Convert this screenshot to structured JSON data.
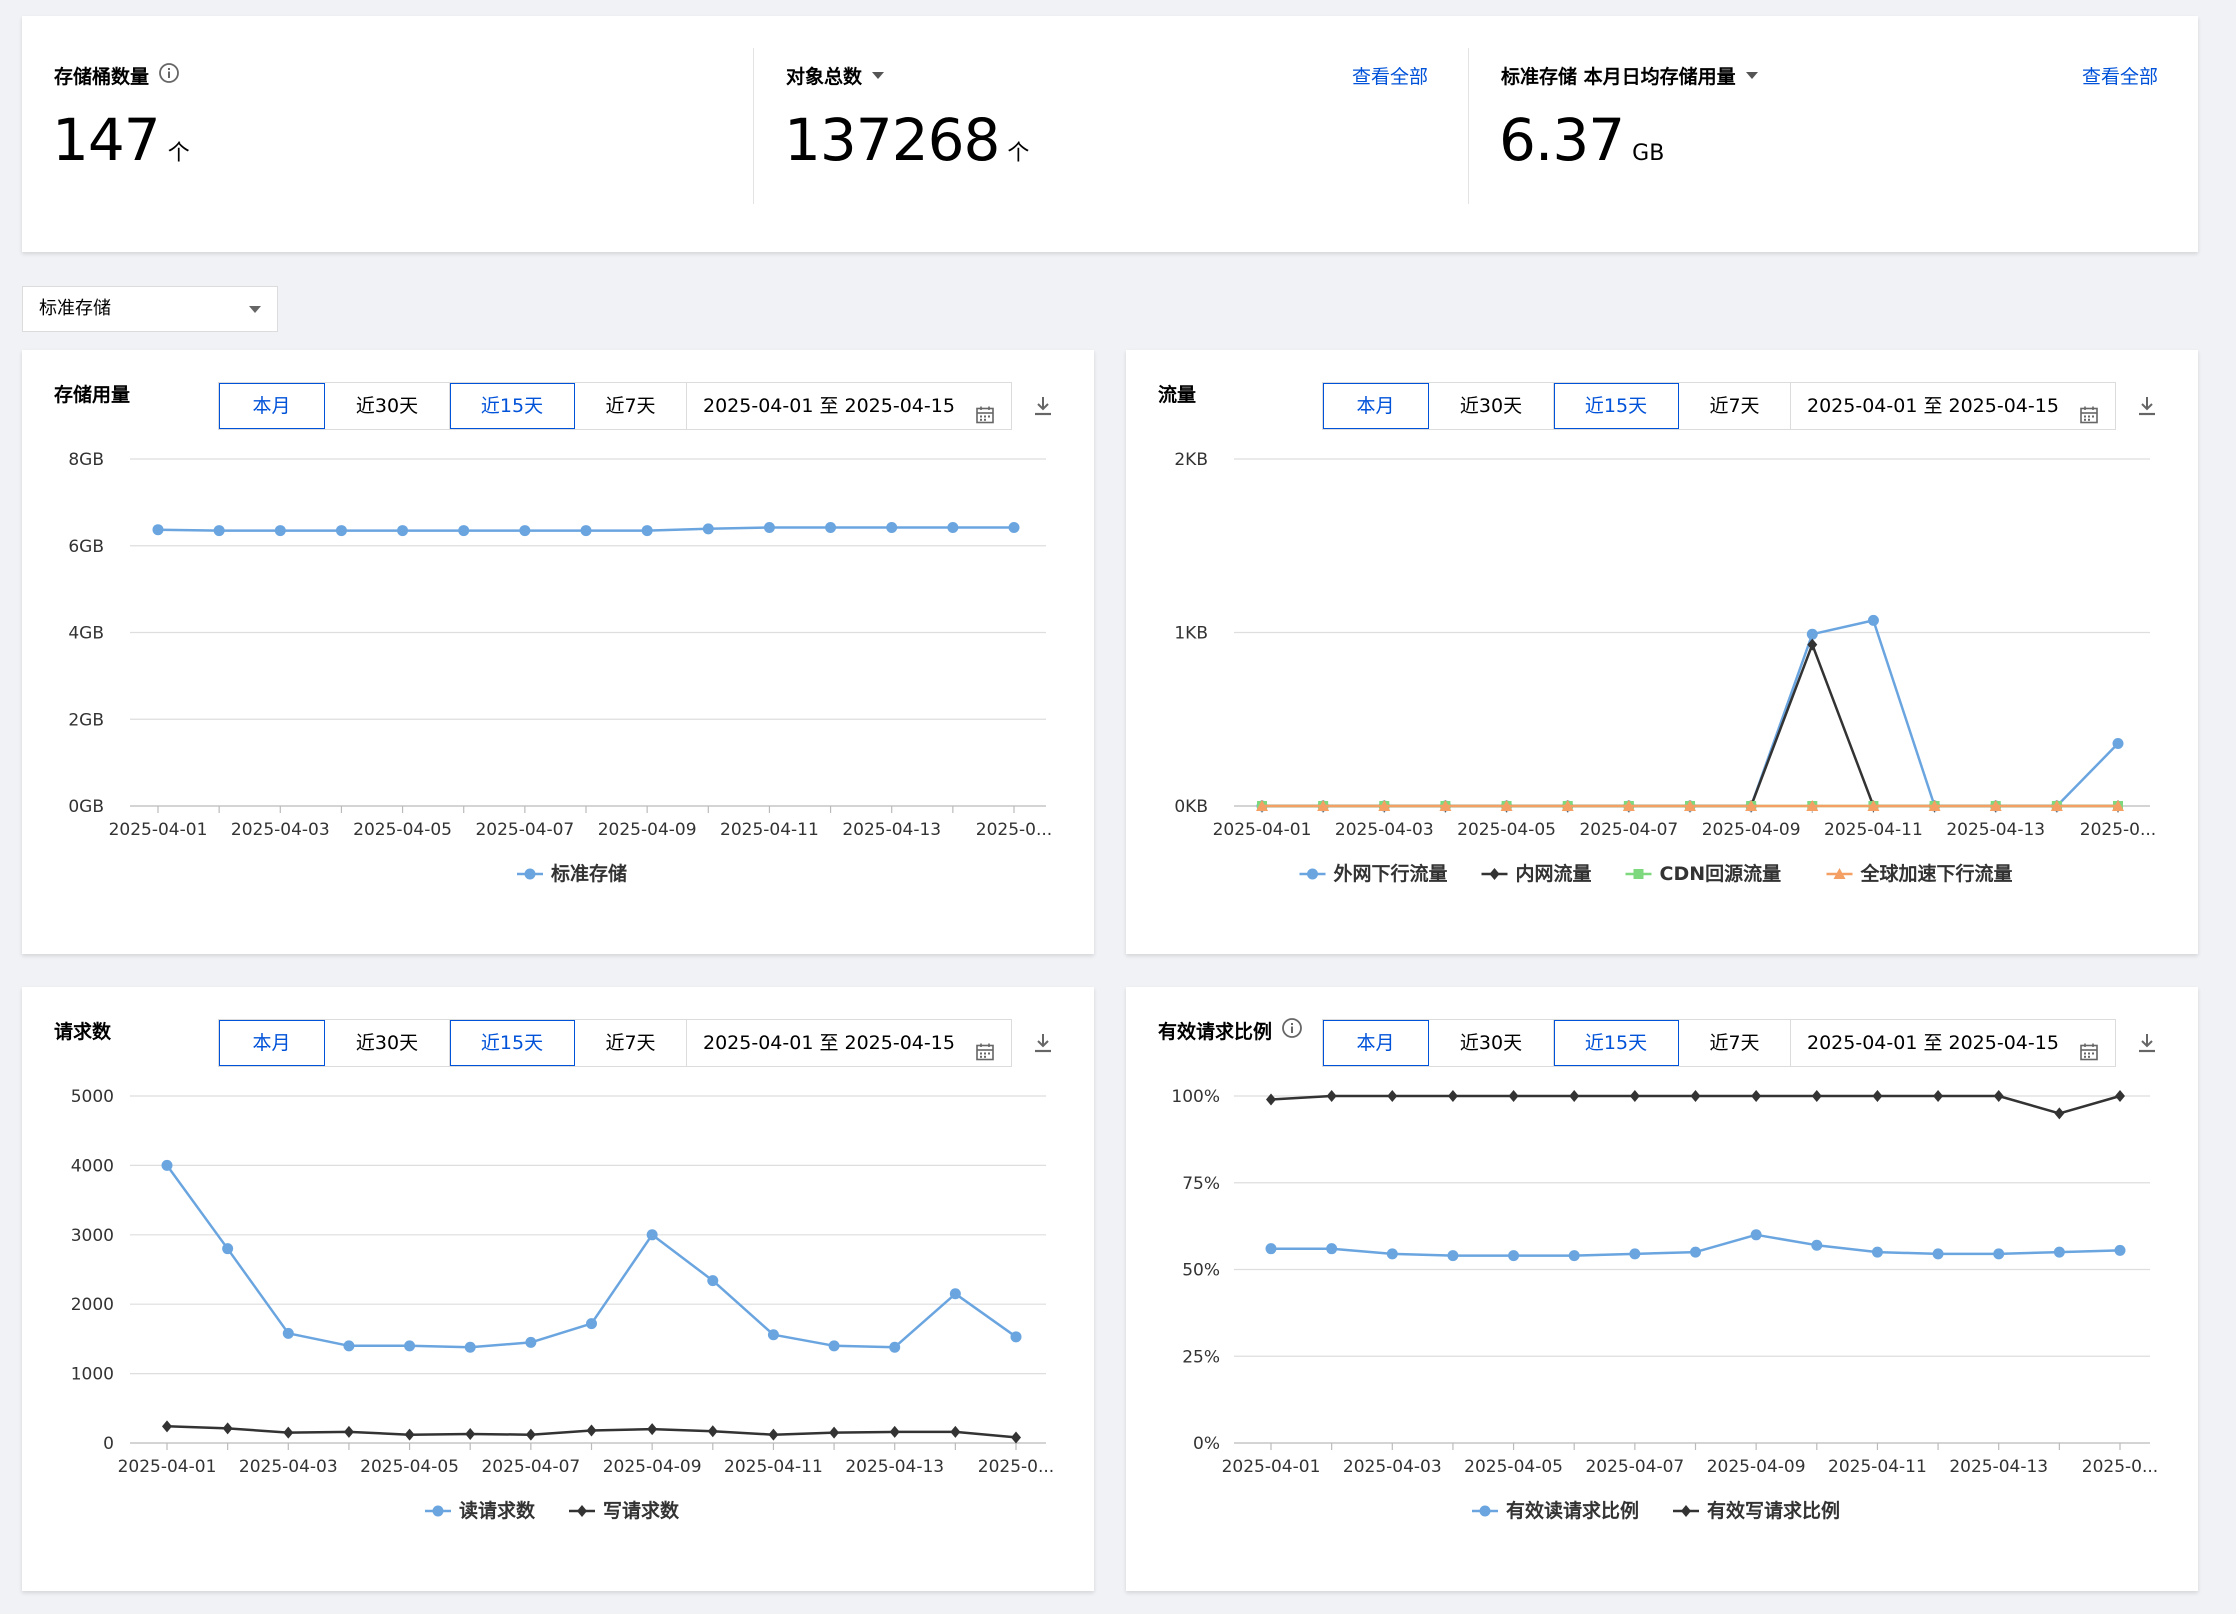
{
  "summary": {
    "bucket_count": {
      "label": "存储桶数量",
      "value": "147",
      "unit": "个",
      "info_icon": "info-icon"
    },
    "object_total": {
      "label": "对象总数",
      "value": "137268",
      "unit": "个",
      "view_all": "查看全部"
    },
    "std_storage": {
      "label": "标准存储 本月日均存储用量",
      "value": "6.37",
      "unit": "GB",
      "view_all": "查看全部"
    }
  },
  "storage_class_select": {
    "value": "标准存储"
  },
  "tabs": [
    "本月",
    "近30天",
    "近15天",
    "近7天"
  ],
  "date_range": "2025-04-01 至 2025-04-15",
  "x_labels": [
    "2025-04-01",
    "2025-04-03",
    "2025-04-05",
    "2025-04-07",
    "2025-04-09",
    "2025-04-11",
    "2025-04-13",
    "2025-0..."
  ],
  "colors": {
    "blue": "#6aa5e0",
    "dark": "#333333",
    "green": "#7ed87e",
    "orange": "#f4a064",
    "link": "#0052d9"
  },
  "panels": {
    "storage": {
      "title": "存储用量"
    },
    "traffic": {
      "title": "流量"
    },
    "requests": {
      "title": "请求数"
    },
    "valid_ratio": {
      "title": "有效请求比例"
    }
  },
  "chart_data": [
    {
      "type": "line",
      "title": "存储用量",
      "y_tick_labels": [
        "8GB",
        "6GB",
        "4GB",
        "2GB",
        "0GB"
      ],
      "ylim": [
        0,
        8
      ],
      "y_unit": "GB",
      "x_count": 15,
      "series": [
        {
          "name": "标准存储",
          "color": "#6aa5e0",
          "marker": "circle",
          "values": [
            6.37,
            6.35,
            6.35,
            6.35,
            6.35,
            6.35,
            6.35,
            6.35,
            6.35,
            6.39,
            6.42,
            6.42,
            6.42,
            6.42,
            6.42
          ]
        }
      ]
    },
    {
      "type": "line",
      "title": "流量",
      "y_tick_labels": [
        "2KB",
        "1KB",
        "0KB"
      ],
      "ylim": [
        0,
        2
      ],
      "y_unit": "KB",
      "x_count": 15,
      "series": [
        {
          "name": "外网下行流量",
          "color": "#6aa5e0",
          "marker": "circle",
          "values": [
            0,
            0,
            0,
            0,
            0,
            0,
            0,
            0,
            0,
            0.99,
            1.07,
            0,
            0,
            0,
            0.36
          ]
        },
        {
          "name": "内网流量",
          "color": "#333333",
          "marker": "diamond",
          "values": [
            0,
            0,
            0,
            0,
            0,
            0,
            0,
            0,
            0,
            0.93,
            0,
            0,
            0,
            0,
            0
          ]
        },
        {
          "name": "CDN回源流量",
          "color": "#7ed87e",
          "marker": "square",
          "values": [
            0,
            0,
            0,
            0,
            0,
            0,
            0,
            0,
            0,
            0,
            0,
            0,
            0,
            0,
            0
          ]
        },
        {
          "name": "全球加速下行流量",
          "color": "#f4a064",
          "marker": "triangle",
          "values": [
            0,
            0,
            0,
            0,
            0,
            0,
            0,
            0,
            0,
            0,
            0,
            0,
            0,
            0,
            0
          ]
        }
      ]
    },
    {
      "type": "line",
      "title": "请求数",
      "y_tick_labels": [
        "5000",
        "4000",
        "3000",
        "2000",
        "1000",
        "0"
      ],
      "ylim": [
        0,
        5000
      ],
      "x_count": 15,
      "series": [
        {
          "name": "读请求数",
          "color": "#6aa5e0",
          "marker": "circle",
          "values": [
            4000,
            2800,
            1580,
            1400,
            1400,
            1380,
            1450,
            1720,
            3000,
            2340,
            1560,
            1400,
            1380,
            2150,
            1530
          ]
        },
        {
          "name": "写请求数",
          "color": "#333333",
          "marker": "diamond",
          "values": [
            240,
            210,
            150,
            160,
            120,
            130,
            120,
            180,
            200,
            170,
            120,
            150,
            160,
            160,
            80
          ]
        }
      ]
    },
    {
      "type": "line",
      "title": "有效请求比例",
      "y_tick_labels": [
        "100%",
        "75%",
        "50%",
        "25%",
        "0%"
      ],
      "ylim": [
        0,
        100
      ],
      "y_unit": "%",
      "x_count": 15,
      "series": [
        {
          "name": "有效读请求比例",
          "color": "#6aa5e0",
          "marker": "circle",
          "values": [
            56,
            56,
            54.5,
            54,
            54,
            54,
            54.5,
            55,
            60,
            57,
            55,
            54.5,
            54.5,
            55,
            55.5
          ]
        },
        {
          "name": "有效写请求比例",
          "color": "#333333",
          "marker": "diamond",
          "values": [
            99,
            100,
            100,
            100,
            100,
            100,
            100,
            100,
            100,
            100,
            100,
            100,
            100,
            95,
            100
          ]
        }
      ]
    }
  ]
}
